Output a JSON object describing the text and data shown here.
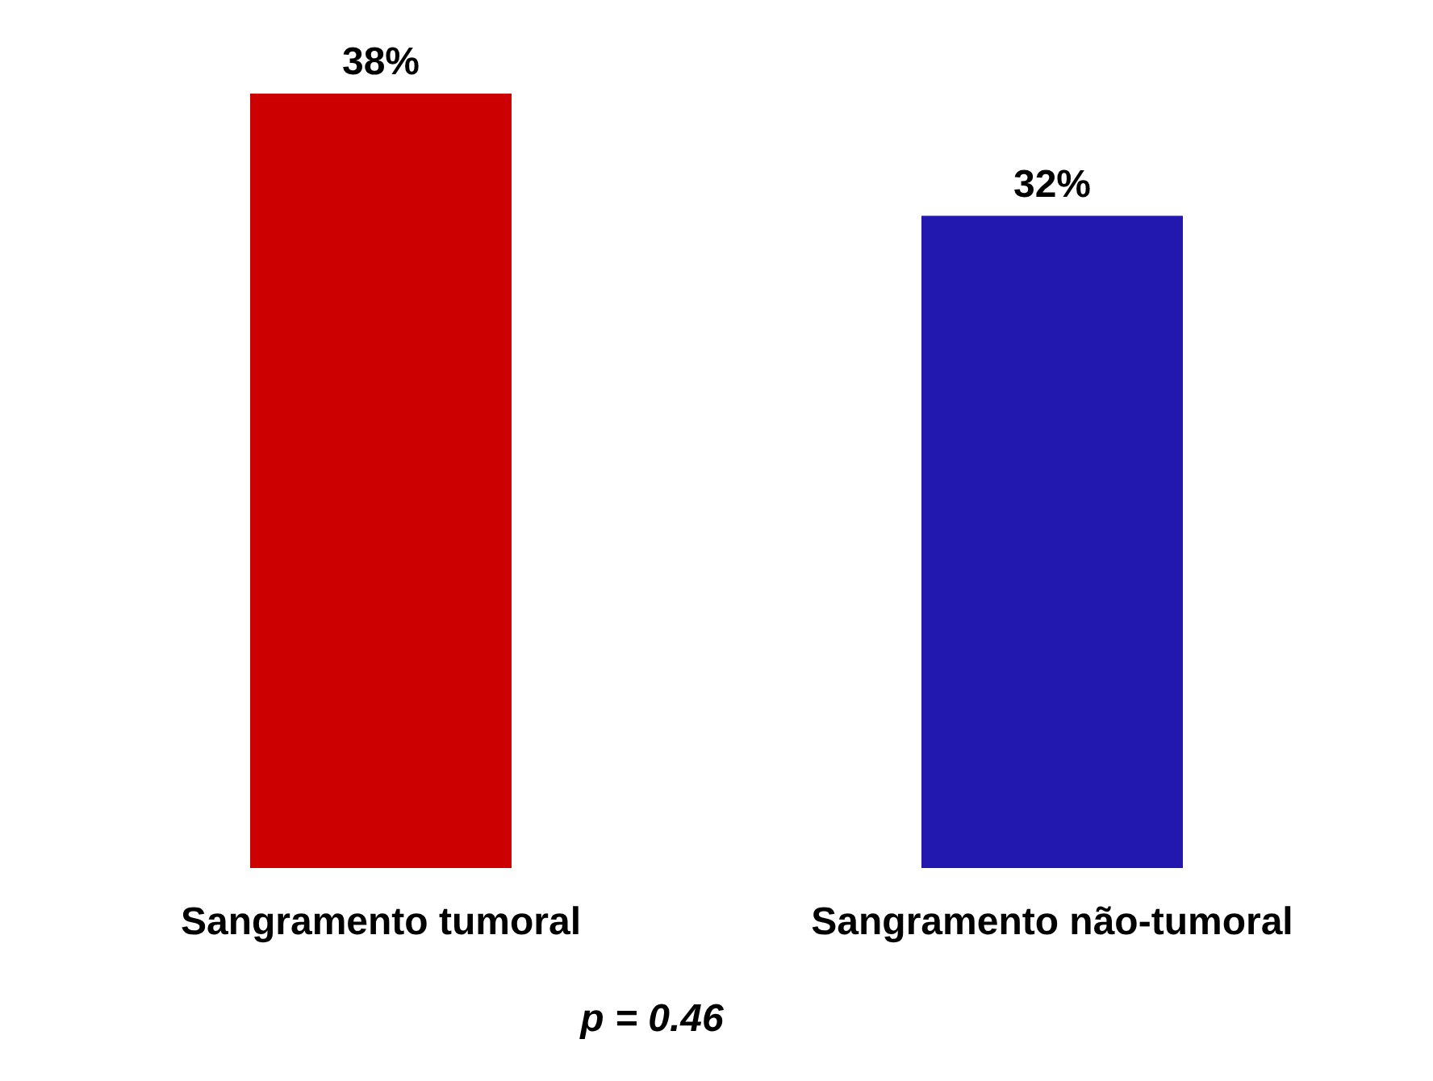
{
  "chart_data": {
    "type": "bar",
    "categories": [
      "Sangramento tumoral",
      "Sangramento não-tumoral"
    ],
    "values": [
      38,
      32
    ],
    "colors": [
      "#cc0000",
      "#2218b0"
    ],
    "value_labels": [
      "38%",
      "32%"
    ],
    "annotations": [
      "p = 0.46"
    ]
  }
}
